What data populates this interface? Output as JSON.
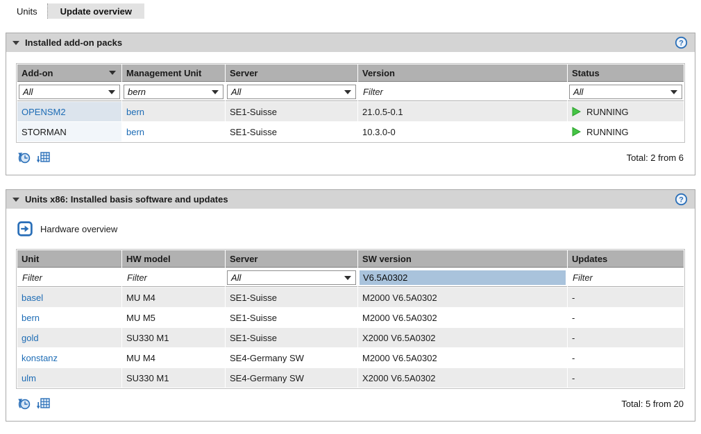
{
  "tabs": [
    {
      "label": "Units",
      "active": false
    },
    {
      "label": "Update overview",
      "active": true
    }
  ],
  "panel1": {
    "title": "Installed add-on packs",
    "help_icon": "help-icon",
    "table": {
      "columns": [
        "Add-on",
        "Management Unit",
        "Server",
        "Version",
        "Status"
      ],
      "filters": {
        "addon": "All",
        "management_unit": "bern",
        "server": "All",
        "version_placeholder": "Filter",
        "status": "All"
      },
      "rows": [
        {
          "addon": "OPENSM2",
          "addon_is_link": true,
          "management_unit": "bern",
          "server": "SE1-Suisse",
          "version": "21.0.5-0.1",
          "status": "RUNNING"
        },
        {
          "addon": "STORMAN",
          "addon_is_link": false,
          "management_unit": "bern",
          "server": "SE1-Suisse",
          "version": "10.3.0-0",
          "status": "RUNNING"
        }
      ],
      "total": "Total: 2 from 6"
    }
  },
  "panel2": {
    "title": "Units x86: Installed basis software and updates",
    "hardware_overview_label": "Hardware overview",
    "table": {
      "columns": [
        "Unit",
        "HW model",
        "Server",
        "SW version",
        "Updates"
      ],
      "filters": {
        "unit_placeholder": "Filter",
        "hw_model_placeholder": "Filter",
        "server": "All",
        "sw_version_value": "V6.5A0302",
        "updates_placeholder": "Filter"
      },
      "rows": [
        {
          "unit": "basel",
          "hw_model": "MU M4",
          "server": "SE1-Suisse",
          "sw_version": "M2000 V6.5A0302",
          "updates": "-"
        },
        {
          "unit": "bern",
          "hw_model": "MU M5",
          "server": "SE1-Suisse",
          "sw_version": "M2000 V6.5A0302",
          "updates": "-"
        },
        {
          "unit": "gold",
          "hw_model": "SU330 M1",
          "server": "SE1-Suisse",
          "sw_version": "X2000 V6.5A0302",
          "updates": "-"
        },
        {
          "unit": "konstanz",
          "hw_model": "MU M4",
          "server": "SE4-Germany SW",
          "sw_version": "M2000 V6.5A0302",
          "updates": "-"
        },
        {
          "unit": "ulm",
          "hw_model": "SU330 M1",
          "server": "SE4-Germany SW",
          "sw_version": "X2000 V6.5A0302",
          "updates": "-"
        }
      ],
      "total": "Total: 5 from 20"
    }
  },
  "colors": {
    "accent_blue": "#2a6fb8",
    "link_blue": "#1d6cb5",
    "running_green": "#45c445",
    "selection_blue": "#a9c3dc",
    "header_gray": "#b1b1b1",
    "panel_gray": "#d4d4d4",
    "stripe_gray": "#ebebeb"
  },
  "icons": {
    "refresh_history": "refresh-history-icon",
    "export_table": "export-table-icon",
    "running": "running-icon",
    "hardware_overview": "hardware-overview-icon",
    "help": "help-icon",
    "collapse": "collapse-icon",
    "sort_desc": "sort-desc-icon"
  }
}
